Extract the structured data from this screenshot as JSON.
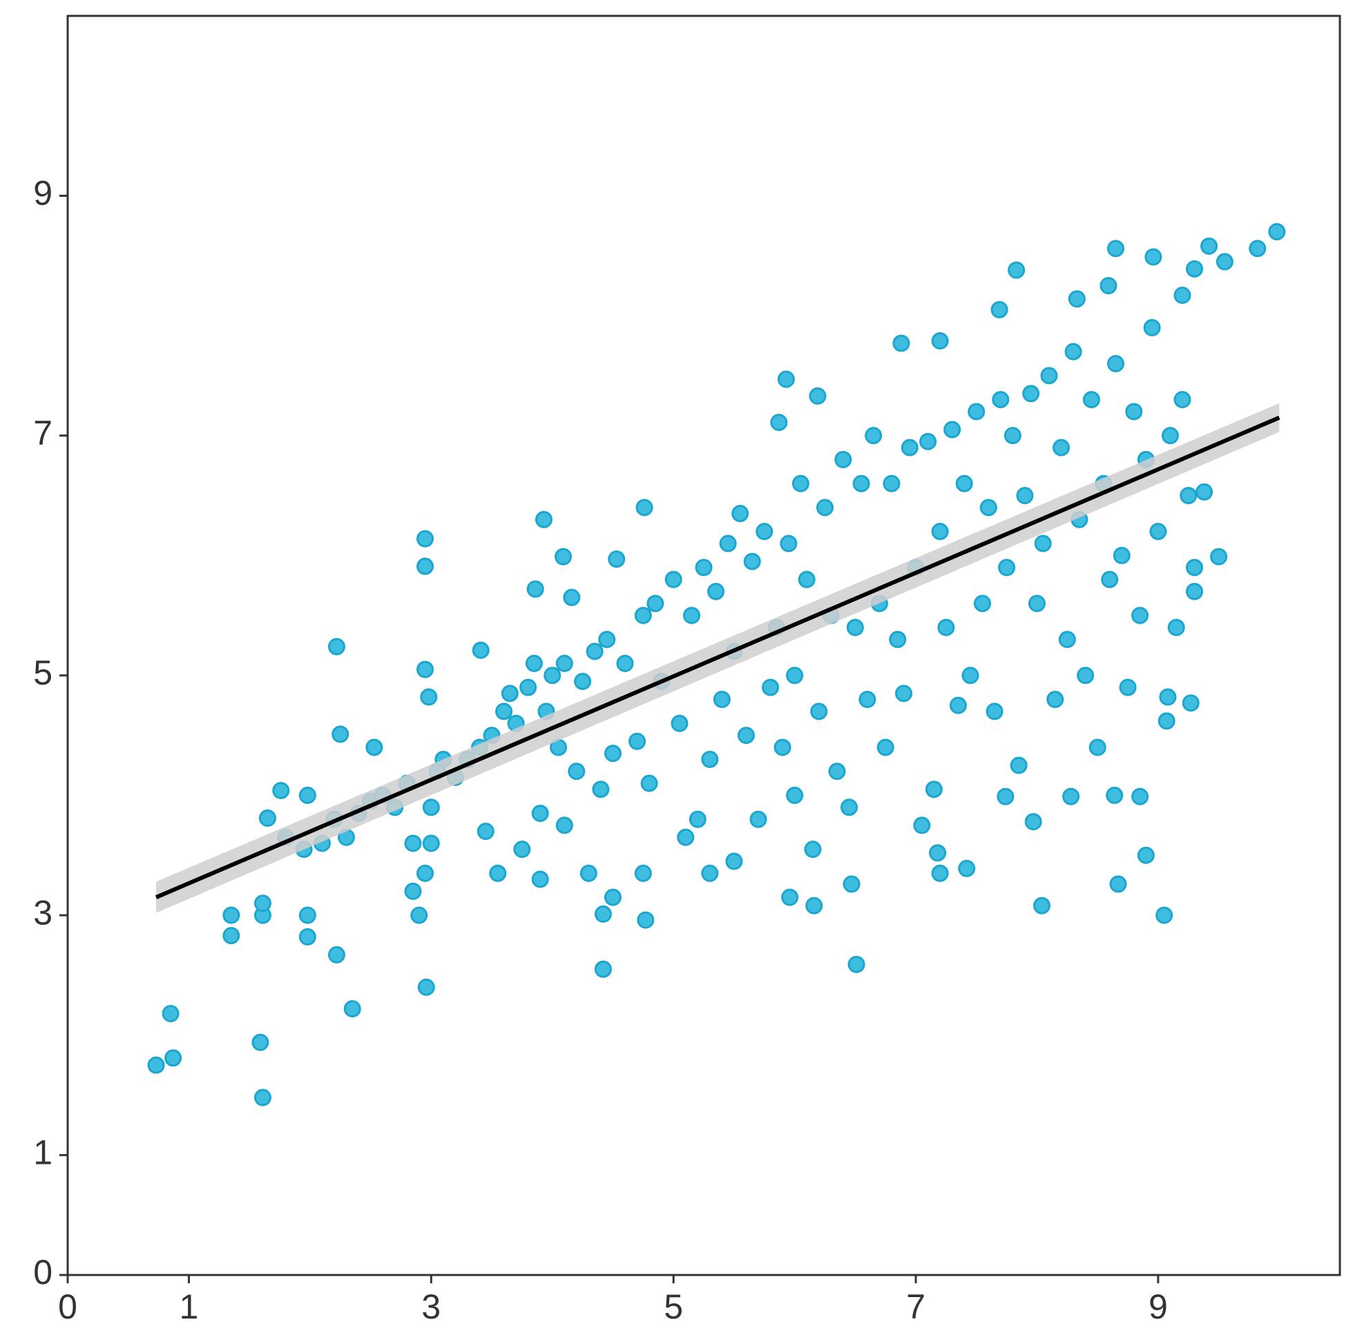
{
  "chart_data": {
    "type": "scatter",
    "x": [
      0.73,
      0.85,
      0.87,
      1.59,
      1.61,
      1.35,
      1.35,
      1.61,
      1.61,
      1.98,
      1.98,
      2.22,
      2.35,
      2.96,
      1.65,
      1.76,
      1.98,
      2.22,
      2.25,
      2.53,
      2.95,
      2.95,
      2.95,
      2.98,
      3.93,
      4.76,
      4.09,
      4.53,
      3.86,
      4.16,
      3.41,
      4.42,
      4.77,
      4.42,
      6.51,
      6.16,
      5.96,
      6.47,
      8.04,
      9.05,
      8.67,
      8.9,
      7.97,
      5.93,
      5.87,
      6.19,
      6.88,
      7.2,
      7.69,
      7.83,
      8.65,
      8.96,
      9.42,
      9.82,
      9.98,
      9.55,
      9.2,
      9.3,
      8.33,
      8.59,
      9.38,
      9.5,
      9.3,
      9.08,
      9.27,
      9.07,
      8.64,
      8.85,
      8.28,
      7.74,
      7.2,
      7.42,
      7.18,
      1.8,
      1.95,
      2.1,
      2.2,
      2.3,
      2.4,
      2.5,
      2.6,
      2.7,
      2.8,
      2.85,
      2.85,
      2.9,
      2.95,
      3.0,
      3.0,
      3.05,
      3.1,
      3.2,
      3.3,
      3.4,
      3.45,
      3.5,
      3.55,
      3.6,
      3.65,
      3.7,
      3.75,
      3.8,
      3.85,
      3.9,
      3.9,
      3.95,
      4.0,
      4.05,
      4.1,
      4.1,
      4.2,
      4.25,
      4.3,
      4.35,
      4.4,
      4.45,
      4.5,
      4.5,
      4.6,
      4.7,
      4.75,
      4.75,
      4.8,
      4.85,
      4.9,
      5.0,
      5.05,
      5.1,
      5.15,
      5.2,
      5.25,
      5.3,
      5.3,
      5.35,
      5.4,
      5.45,
      5.5,
      5.5,
      5.55,
      5.6,
      5.65,
      5.7,
      5.75,
      5.8,
      5.85,
      5.9,
      5.95,
      6.0,
      6.0,
      6.05,
      6.1,
      6.15,
      6.2,
      6.25,
      6.3,
      6.35,
      6.4,
      6.45,
      6.5,
      6.55,
      6.6,
      6.65,
      6.7,
      6.75,
      6.8,
      6.85,
      6.9,
      6.95,
      7.0,
      7.05,
      7.1,
      7.15,
      7.2,
      7.25,
      7.3,
      7.35,
      7.4,
      7.45,
      7.5,
      7.55,
      7.6,
      7.65,
      7.7,
      7.75,
      7.8,
      7.85,
      7.9,
      7.95,
      8.0,
      8.05,
      8.1,
      8.15,
      8.2,
      8.25,
      8.3,
      8.35,
      8.4,
      8.45,
      8.5,
      8.55,
      8.6,
      8.65,
      8.7,
      8.75,
      8.8,
      8.85,
      8.9,
      8.95,
      9.0,
      9.1,
      9.15,
      9.2,
      9.25,
      9.3
    ],
    "y": [
      1.75,
      2.18,
      1.81,
      1.94,
      1.48,
      3.0,
      2.83,
      3.0,
      3.1,
      3.0,
      2.82,
      2.67,
      2.22,
      2.4,
      3.81,
      4.04,
      4.0,
      5.24,
      4.51,
      4.4,
      6.14,
      5.91,
      5.05,
      4.82,
      6.3,
      6.4,
      5.99,
      5.97,
      5.72,
      5.65,
      5.21,
      2.55,
      2.96,
      3.01,
      2.59,
      3.08,
      3.15,
      3.26,
      3.08,
      3.0,
      3.26,
      3.5,
      3.78,
      7.47,
      7.11,
      7.33,
      7.77,
      7.79,
      8.05,
      8.38,
      8.56,
      8.49,
      8.58,
      8.56,
      8.7,
      8.45,
      8.17,
      8.39,
      8.14,
      8.25,
      6.53,
      5.99,
      5.7,
      4.82,
      4.77,
      4.62,
      4.0,
      3.99,
      3.99,
      3.99,
      3.35,
      3.39,
      3.52,
      3.65,
      3.55,
      3.6,
      3.8,
      3.65,
      3.85,
      3.95,
      4.0,
      3.9,
      4.1,
      3.6,
      3.2,
      3.0,
      3.35,
      3.6,
      3.9,
      4.2,
      4.3,
      4.15,
      4.3,
      4.4,
      3.7,
      4.5,
      3.35,
      4.7,
      4.85,
      4.6,
      3.55,
      4.9,
      5.1,
      3.85,
      3.3,
      4.7,
      5.0,
      4.4,
      3.75,
      5.1,
      4.2,
      4.95,
      3.35,
      5.2,
      4.05,
      5.3,
      3.15,
      4.35,
      5.1,
      4.45,
      3.35,
      5.5,
      4.1,
      5.6,
      4.95,
      5.8,
      4.6,
      3.65,
      5.5,
      3.8,
      5.9,
      4.3,
      3.35,
      5.7,
      4.8,
      6.1,
      3.45,
      5.2,
      6.35,
      4.5,
      5.95,
      3.8,
      6.2,
      4.9,
      5.4,
      4.4,
      6.1,
      4.0,
      5.0,
      6.6,
      5.8,
      3.55,
      4.7,
      6.4,
      5.5,
      4.2,
      6.8,
      3.9,
      5.4,
      6.6,
      4.8,
      7.0,
      5.6,
      4.4,
      6.6,
      5.3,
      4.85,
      6.9,
      5.9,
      3.75,
      6.95,
      4.05,
      6.2,
      5.4,
      7.05,
      4.75,
      6.6,
      5.0,
      7.2,
      5.6,
      6.4,
      4.7,
      7.3,
      5.9,
      7.0,
      4.25,
      6.5,
      7.35,
      5.6,
      6.1,
      7.5,
      4.8,
      6.9,
      5.3,
      7.7,
      6.3,
      5.0,
      7.3,
      4.4,
      6.6,
      5.8,
      7.6,
      6.0,
      4.9,
      7.2,
      5.5,
      6.8,
      7.9,
      6.2,
      7.0,
      5.4,
      7.3,
      6.5,
      5.9
    ],
    "color": "#3fbde0",
    "edge_color": "#1aa6cf",
    "fit": {
      "x": [
        0.73,
        10
      ],
      "y": [
        3.15,
        7.15
      ],
      "lower": [
        3.02,
        7.03
      ],
      "upper": [
        3.28,
        7.27
      ],
      "color": "#000000",
      "band_color": "#cfcfcf"
    },
    "xlim": [
      0,
      10.5
    ],
    "ylim": [
      0,
      10.5
    ],
    "xticks": [
      0,
      1,
      3,
      5,
      7,
      9
    ],
    "yticks": [
      0,
      1,
      3,
      5,
      7,
      9
    ]
  }
}
